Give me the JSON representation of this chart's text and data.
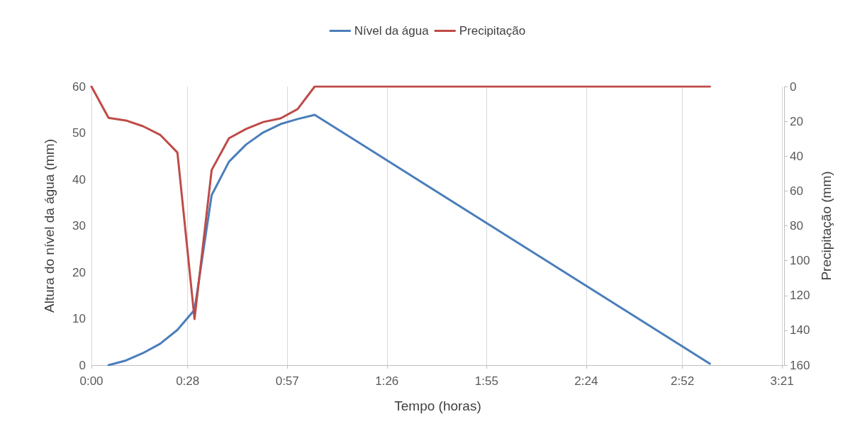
{
  "chart_data": {
    "type": "line",
    "xlabel": "Tempo (horas)",
    "ylabel": "Altura do nível da água (mm)",
    "y2label": "Precipitação (mm)",
    "xlim": [
      0,
      3.36
    ],
    "xticks": [
      {
        "value": 0,
        "label": "0:00"
      },
      {
        "value": 0.4667,
        "label": "0:28"
      },
      {
        "value": 0.95,
        "label": "0:57"
      },
      {
        "value": 1.4333,
        "label": "1:26"
      },
      {
        "value": 1.9167,
        "label": "1:55"
      },
      {
        "value": 2.4,
        "label": "2:24"
      },
      {
        "value": 2.8667,
        "label": "2:52"
      },
      {
        "value": 3.35,
        "label": "3:21"
      }
    ],
    "ylim": [
      0,
      60
    ],
    "yticks": [
      0,
      10,
      20,
      30,
      40,
      50,
      60
    ],
    "y2lim": [
      160,
      0
    ],
    "y2ticks": [
      0,
      20,
      40,
      60,
      80,
      100,
      120,
      140,
      160
    ],
    "grid": "x",
    "legend": "top",
    "marker": "none",
    "line_style": "solid",
    "series": [
      {
        "name": "Nível da água",
        "color": "#4a7ebb",
        "x": [
          0.083,
          0.167,
          0.25,
          0.333,
          0.417,
          0.5,
          0.583,
          0.667,
          0.75,
          0.833,
          0.917,
          1.0,
          1.083,
          3.0
        ],
        "values": [
          0,
          1,
          2.6,
          4.6,
          7.6,
          11.9,
          36.6,
          43.8,
          47.5,
          50.1,
          51.9,
          53,
          53.9,
          0.3
        ]
      },
      {
        "name": "Precipitação",
        "color": "#be4b48",
        "axis": "y2",
        "x": [
          0,
          0.083,
          0.167,
          0.25,
          0.333,
          0.417,
          0.5,
          0.583,
          0.667,
          0.75,
          0.833,
          0.917,
          1.0,
          1.083,
          1.167,
          3.0
        ],
        "values": [
          0,
          18,
          19.5,
          22.8,
          27.7,
          37.9,
          133.5,
          48,
          29.7,
          24.4,
          20.4,
          18.3,
          13,
          0,
          0,
          0
        ]
      }
    ]
  }
}
